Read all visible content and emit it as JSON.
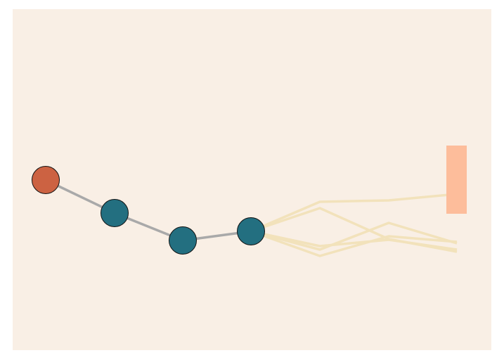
{
  "colors": {
    "page": "#ffffff",
    "board": "#f9efe5",
    "path": "#a9a9a9",
    "start_node": "#cc6242",
    "node": "#236f80",
    "node_outline": "#111111",
    "preview": "#f2e2bb",
    "goal": "#fdbd9b"
  },
  "path_nodes": [
    {
      "kind": "start"
    },
    {
      "kind": "node"
    },
    {
      "kind": "node"
    },
    {
      "kind": "node"
    }
  ],
  "preview_branch_count": 5,
  "goal": {
    "kind": "target-zone"
  }
}
